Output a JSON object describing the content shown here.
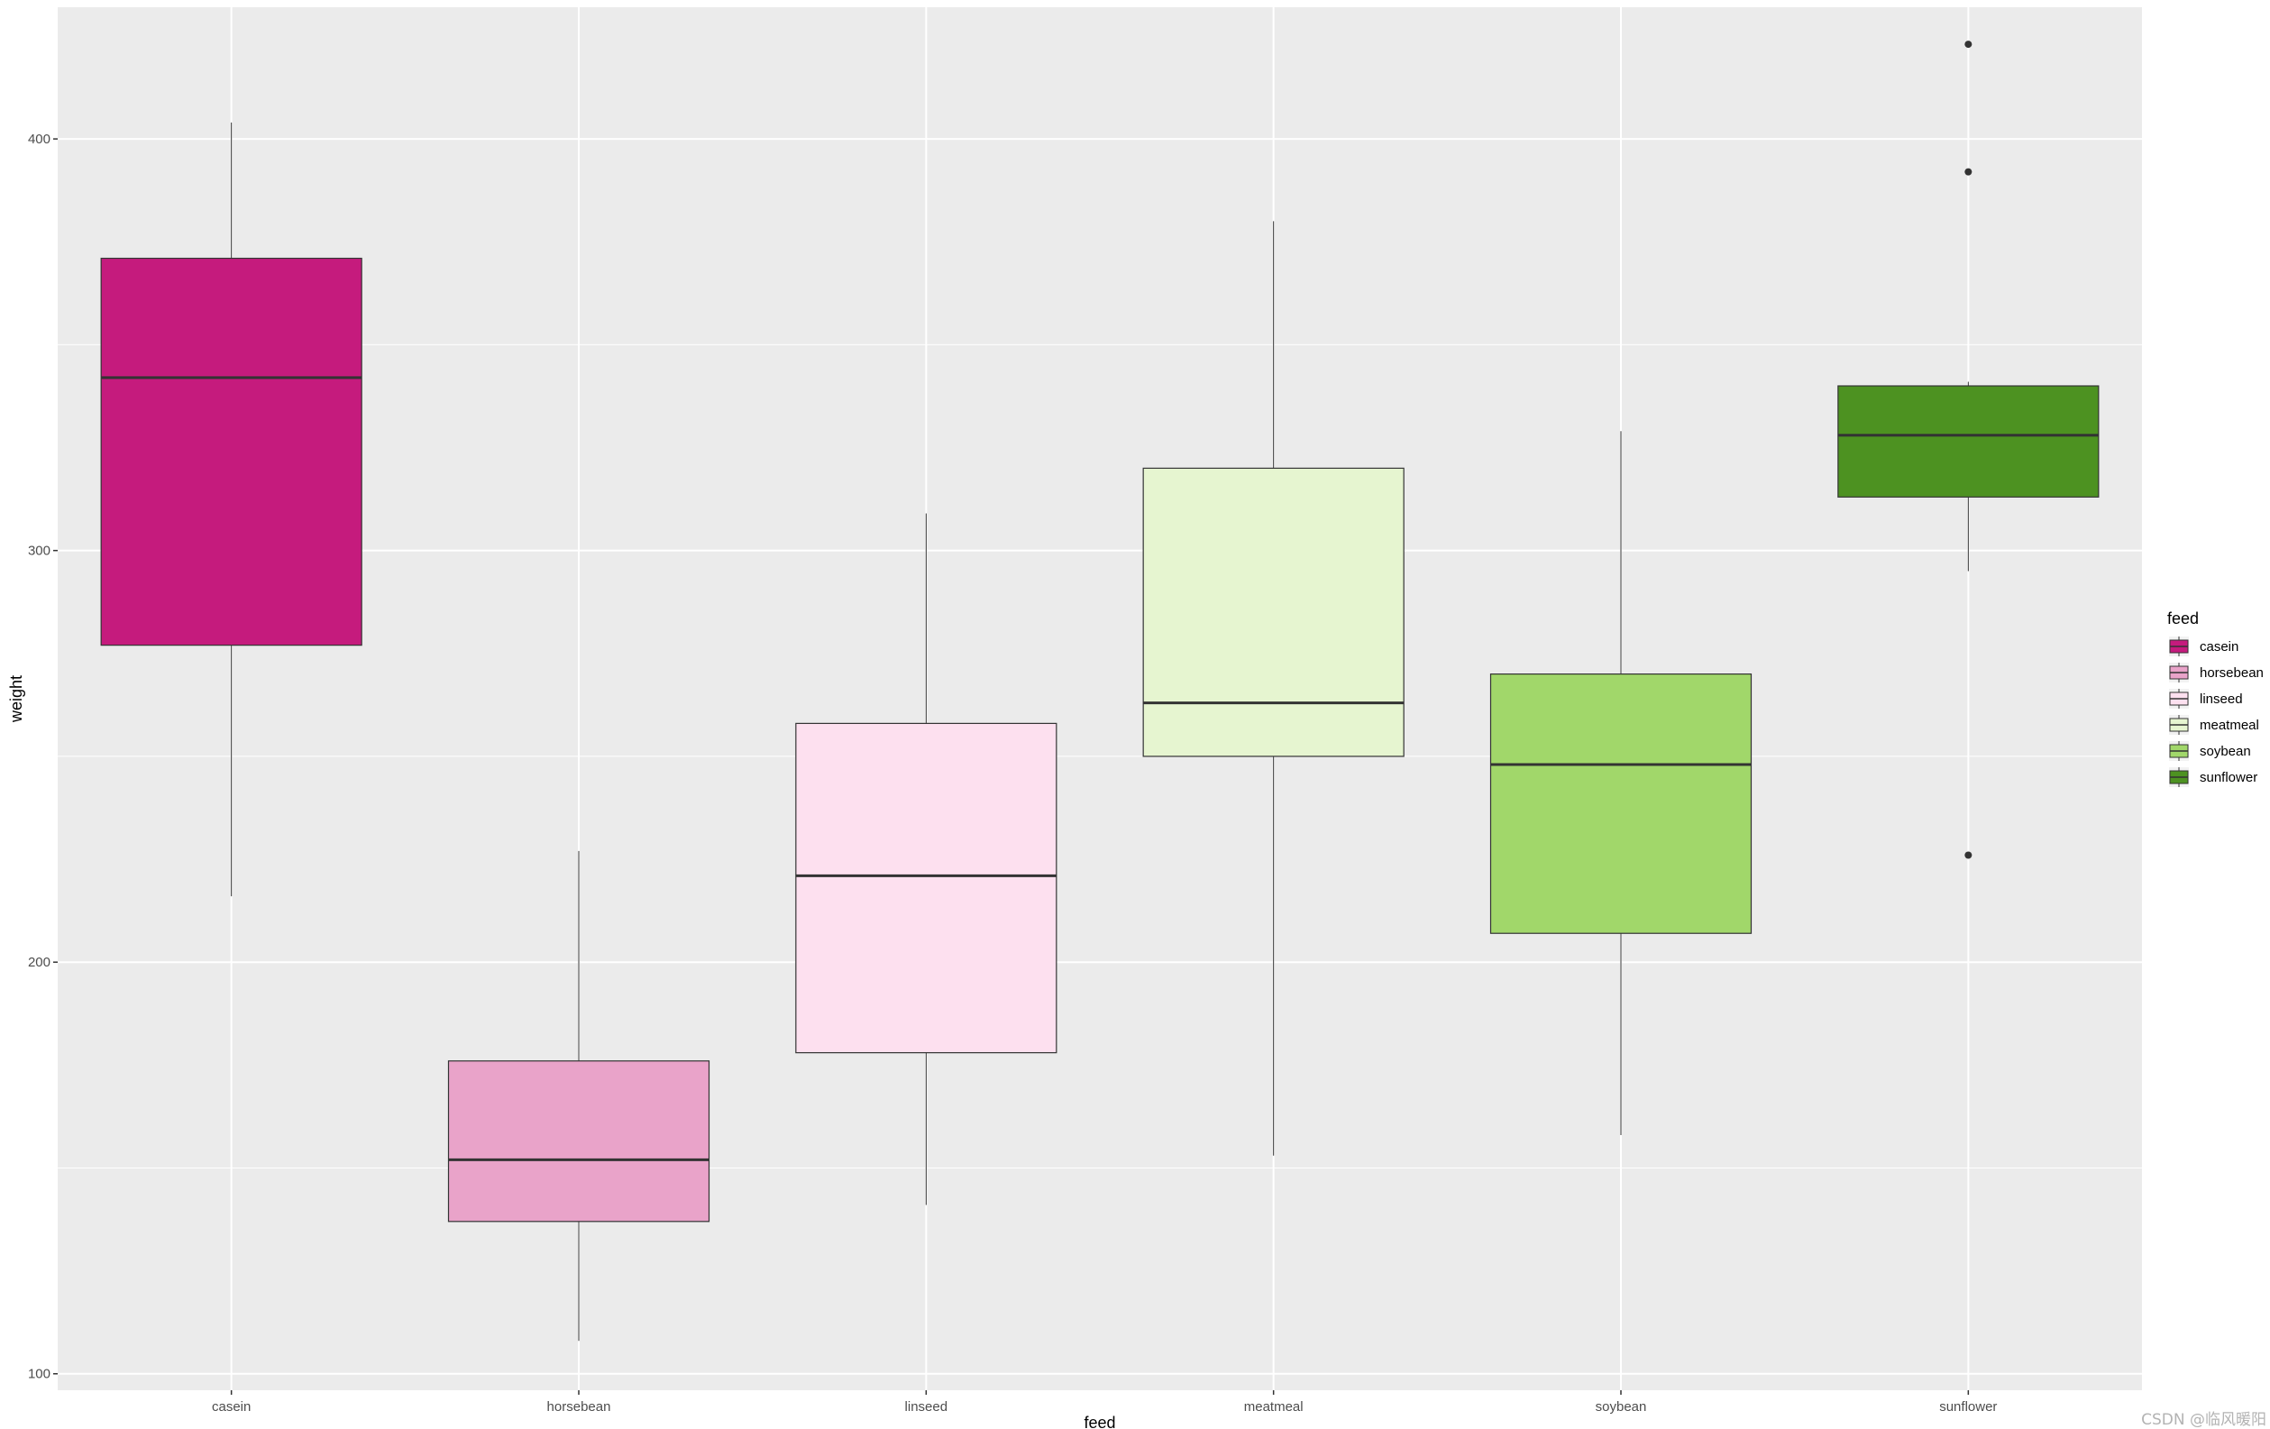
{
  "chart_data": {
    "type": "boxplot",
    "xlabel": "feed",
    "ylabel": "weight",
    "ylim": [
      96,
      432
    ],
    "yticks": [
      100,
      200,
      300,
      400
    ],
    "grid": true,
    "legend_title": "feed",
    "legend_position": "right",
    "categories": [
      "casein",
      "horsebean",
      "linseed",
      "meatmeal",
      "soybean",
      "sunflower"
    ],
    "colors": [
      "#c51b7d",
      "#e9a3c9",
      "#fde0ef",
      "#e6f5d0",
      "#a1d76a",
      "#4d9221"
    ],
    "boxes": [
      {
        "name": "casein",
        "whisker_low": 216,
        "q1": 277,
        "median": 342,
        "q3": 371,
        "whisker_high": 404,
        "outliers": []
      },
      {
        "name": "horsebean",
        "whisker_low": 108,
        "q1": 137,
        "median": 152,
        "q3": 176,
        "whisker_high": 227,
        "outliers": []
      },
      {
        "name": "linseed",
        "whisker_low": 141,
        "q1": 178,
        "median": 221,
        "q3": 258,
        "whisker_high": 309,
        "outliers": []
      },
      {
        "name": "meatmeal",
        "whisker_low": 153,
        "q1": 250,
        "median": 263,
        "q3": 320,
        "whisker_high": 380,
        "outliers": []
      },
      {
        "name": "soybean",
        "whisker_low": 158,
        "q1": 207,
        "median": 248,
        "q3": 270,
        "whisker_high": 329,
        "outliers": []
      },
      {
        "name": "sunflower",
        "whisker_low": 295,
        "q1": 313,
        "median": 328,
        "q3": 340,
        "whisker_high": 341,
        "outliers": [
          423,
          392,
          226
        ]
      }
    ]
  },
  "watermark": "CSDN @临风暖阳"
}
